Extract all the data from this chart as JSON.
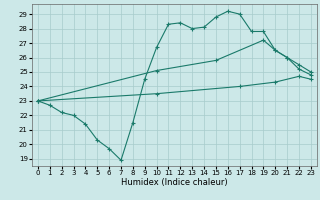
{
  "xlabel": "Humidex (Indice chaleur)",
  "bg_color": "#cce8e8",
  "grid_color": "#a8cccc",
  "line_color": "#1a7a6a",
  "xlim": [
    -0.5,
    23.5
  ],
  "ylim": [
    18.5,
    29.7
  ],
  "yticks": [
    19,
    20,
    21,
    22,
    23,
    24,
    25,
    26,
    27,
    28,
    29
  ],
  "xticks": [
    0,
    1,
    2,
    3,
    4,
    5,
    6,
    7,
    8,
    9,
    10,
    11,
    12,
    13,
    14,
    15,
    16,
    17,
    18,
    19,
    20,
    21,
    22,
    23
  ],
  "line1_x": [
    0,
    1,
    2,
    3,
    4,
    5,
    6,
    7,
    8,
    9,
    10,
    11,
    12,
    13,
    14,
    15,
    16,
    17,
    18,
    19,
    20,
    21,
    22,
    23
  ],
  "line1_y": [
    23.0,
    22.7,
    22.2,
    22.0,
    21.4,
    20.3,
    19.7,
    18.9,
    21.5,
    24.5,
    26.7,
    28.3,
    28.4,
    28.0,
    28.1,
    28.8,
    29.2,
    29.0,
    27.8,
    27.8,
    26.5,
    26.0,
    25.2,
    24.8
  ],
  "line2_x": [
    0,
    10,
    15,
    19,
    20,
    21,
    22,
    23
  ],
  "line2_y": [
    23.0,
    25.1,
    25.8,
    27.2,
    26.5,
    26.0,
    25.5,
    25.0
  ],
  "line3_x": [
    0,
    10,
    17,
    20,
    22,
    23
  ],
  "line3_y": [
    23.0,
    23.5,
    24.0,
    24.3,
    24.7,
    24.5
  ]
}
